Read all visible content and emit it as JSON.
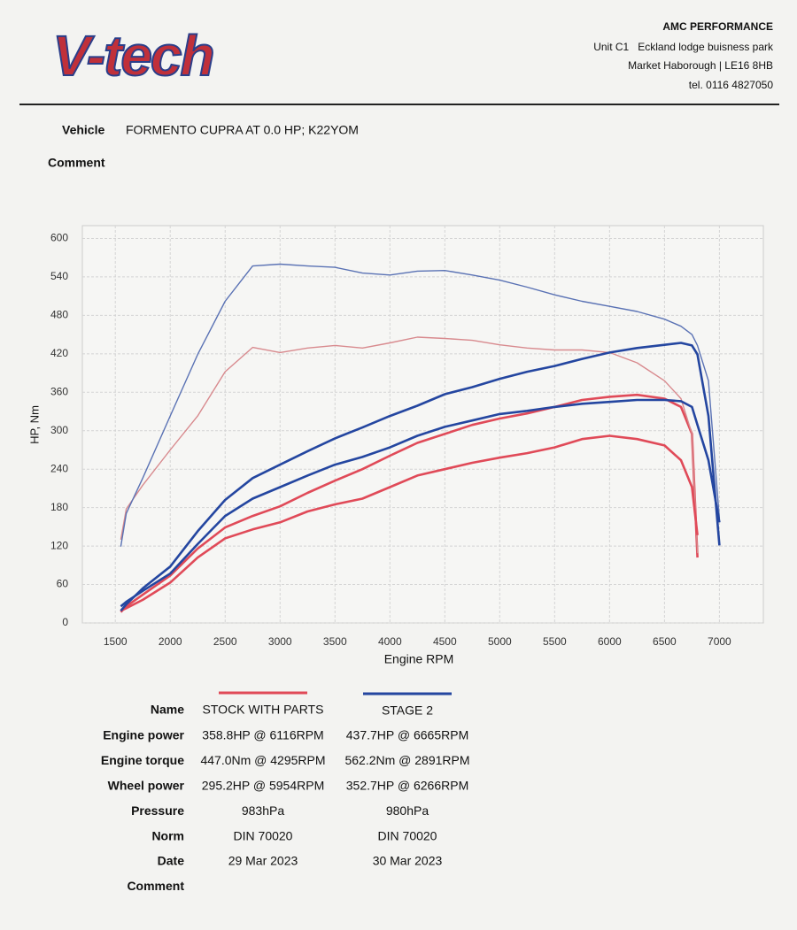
{
  "header": {
    "logo": "V-tech",
    "company": "AMC PERFORMANCE",
    "address": [
      "Unit C1   Eckland lodge buisness park",
      "Market Haborough | LE16 8HB",
      "tel. 0116 4827050"
    ]
  },
  "vehicle": {
    "label": "Vehicle",
    "value": "FORMENTO CUPRA AT 0.0 HP; K22YOM"
  },
  "comment_label": "Comment",
  "chart_data": {
    "type": "line",
    "xlabel": "Engine RPM",
    "ylabel": "HP, Nm",
    "x": [
      1550,
      1600,
      1750,
      2000,
      2250,
      2500,
      2750,
      3000,
      3250,
      3500,
      3750,
      4000,
      4250,
      4500,
      4750,
      5000,
      5250,
      5500,
      5750,
      6000,
      6250,
      6500,
      6650,
      6750,
      6800,
      6900,
      7000
    ],
    "xlim": [
      1200,
      7400
    ],
    "xticks": [
      1500,
      2000,
      2500,
      3000,
      3500,
      4000,
      4500,
      5000,
      5500,
      6000,
      6500,
      7000
    ],
    "ylim": [
      0,
      620
    ],
    "yticks": [
      0,
      60,
      120,
      180,
      240,
      300,
      360,
      420,
      480,
      540,
      600
    ],
    "grid": true,
    "series": [
      {
        "name": "STOCK WITH PARTS",
        "color": "#e04a58",
        "width": 2.6,
        "values": [
          17,
          26,
          44,
          74,
          116,
          149,
          167,
          182,
          203,
          222,
          240,
          261,
          281,
          295,
          309,
          319,
          327,
          337,
          348,
          353,
          356,
          350,
          337,
          295,
          102,
          null,
          null
        ]
      },
      {
        "name": "STOCK WITH PARTS",
        "color": "#d88a8e",
        "width": 1.4,
        "values": [
          130,
          178,
          215,
          270,
          323,
          392,
          430,
          422,
          429,
          433,
          429,
          437,
          446,
          444,
          441,
          434,
          429,
          426,
          426,
          422,
          406,
          378,
          350,
          295,
          109,
          null,
          null
        ]
      },
      {
        "name": "STOCK WITH PARTS",
        "color": "#e04a58",
        "width": 2.6,
        "values": [
          19,
          23,
          36,
          63,
          102,
          132,
          146,
          157,
          174,
          185,
          194,
          212,
          230,
          240,
          250,
          258,
          265,
          274,
          287,
          292,
          287,
          277,
          254,
          212,
          137,
          null,
          null
        ]
      },
      {
        "name": "STAGE 2",
        "color": "#2446a0",
        "width": 2.6,
        "values": [
          19,
          29,
          54,
          88,
          143,
          192,
          226,
          247,
          268,
          288,
          305,
          323,
          339,
          357,
          368,
          381,
          392,
          401,
          412,
          422,
          429,
          434,
          437,
          433,
          419,
          323,
          121
        ]
      },
      {
        "name": "STAGE 2",
        "color": "#5a72b4",
        "width": 1.4,
        "values": [
          119,
          171,
          226,
          323,
          419,
          502,
          557,
          560,
          557,
          555,
          546,
          543,
          549,
          550,
          543,
          535,
          524,
          512,
          502,
          494,
          486,
          474,
          463,
          450,
          433,
          378,
          163
        ]
      },
      {
        "name": "STAGE 2",
        "color": "#2446a0",
        "width": 2.6,
        "values": [
          26,
          33,
          50,
          77,
          123,
          167,
          194,
          212,
          230,
          247,
          259,
          274,
          292,
          306,
          316,
          326,
          331,
          337,
          342,
          345,
          348,
          348,
          346,
          337,
          309,
          254,
          157
        ]
      }
    ]
  },
  "table": {
    "name_label": "Name",
    "rows": [
      [
        "Engine power",
        "358.8HP @ 6116RPM",
        "437.7HP @ 6665RPM"
      ],
      [
        "Engine torque",
        "447.0Nm @ 4295RPM",
        "562.2Nm @ 2891RPM"
      ],
      [
        "Wheel power",
        "295.2HP @ 5954RPM",
        "352.7HP @ 6266RPM"
      ],
      [
        "Pressure",
        "983hPa",
        "980hPa"
      ],
      [
        "Norm",
        "DIN 70020",
        "DIN 70020"
      ],
      [
        "Date",
        "29 Mar 2023",
        "30 Mar 2023"
      ],
      [
        "Comment"
      ]
    ]
  }
}
